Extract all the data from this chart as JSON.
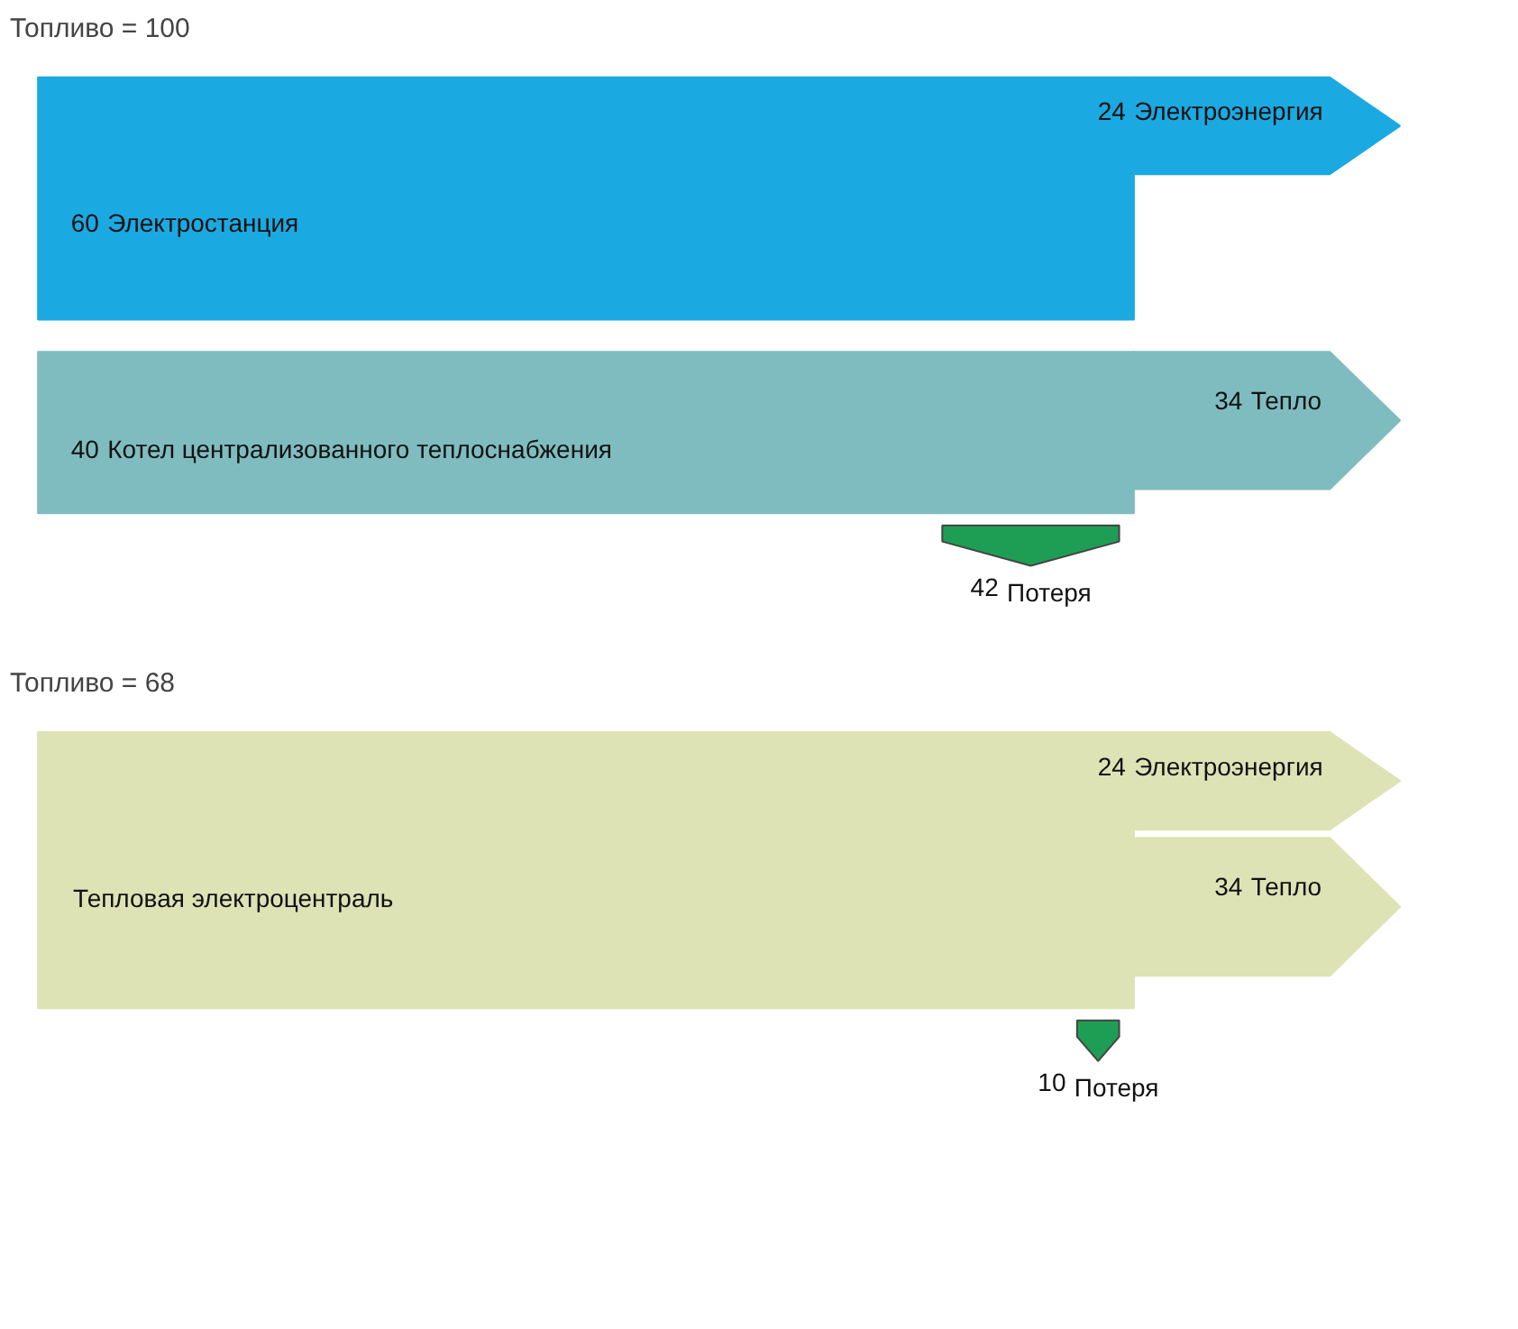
{
  "chart_data": [
    {
      "type": "other",
      "title": "Топливо = 100",
      "categories": [
        "Электростанция",
        "Котел централизованного теплоснабжения",
        "Электроэнергия",
        "Тепло",
        "Потеря"
      ],
      "values": [
        60,
        40,
        24,
        34,
        42
      ],
      "colors": [
        "#1ba9e1",
        "#7fbcbf",
        "#1ba9e1",
        "#7fbcbf",
        "#1e9e55"
      ],
      "data_labels": true
    },
    {
      "type": "other",
      "title": "Топливо = 68",
      "categories": [
        "Тепловая электроцентраль",
        "Электроэнергия",
        "Тепло",
        "Потеря"
      ],
      "values": [
        null,
        24,
        34,
        10
      ],
      "colors": [
        "#dde3b5",
        "#dde3b5",
        "#dde3b5",
        "#1e9e55"
      ],
      "data_labels": true
    }
  ]
}
